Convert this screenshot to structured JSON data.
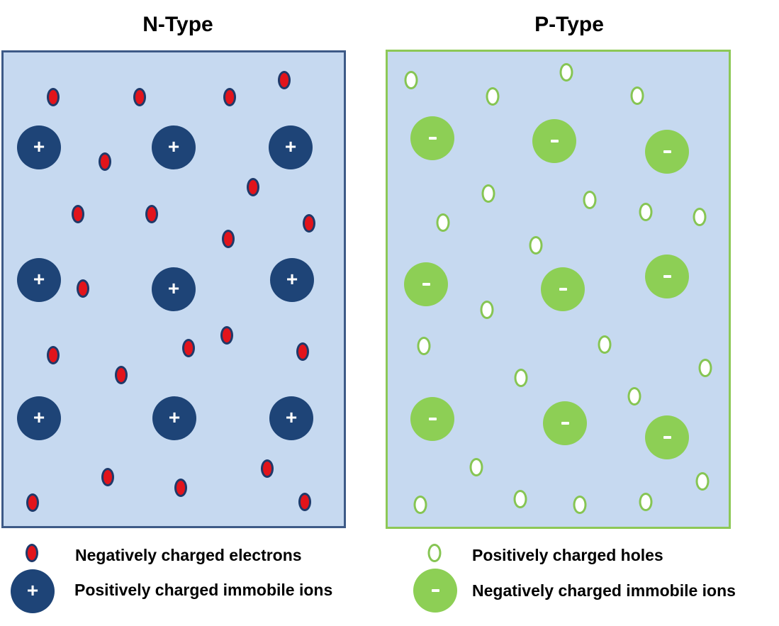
{
  "n_type": {
    "title": "N-Type",
    "ion_sign": "+",
    "immobile_ions": [
      [
        55,
        208
      ],
      [
        245,
        208
      ],
      [
        410,
        208
      ],
      [
        55,
        395
      ],
      [
        245,
        408
      ],
      [
        412,
        395
      ],
      [
        55,
        590
      ],
      [
        246,
        590
      ],
      [
        411,
        590
      ]
    ],
    "electrons": [
      [
        75,
        137
      ],
      [
        197,
        137
      ],
      [
        324,
        137
      ],
      [
        401,
        113
      ],
      [
        148,
        228
      ],
      [
        357,
        264
      ],
      [
        110,
        302
      ],
      [
        214,
        302
      ],
      [
        322,
        337
      ],
      [
        436,
        315
      ],
      [
        117,
        407
      ],
      [
        75,
        501
      ],
      [
        266,
        491
      ],
      [
        320,
        473
      ],
      [
        427,
        496
      ],
      [
        171,
        529
      ],
      [
        152,
        673
      ],
      [
        255,
        688
      ],
      [
        377,
        661
      ],
      [
        46,
        709
      ],
      [
        430,
        708
      ]
    ]
  },
  "p_type": {
    "title": "P-Type",
    "ion_sign": "-",
    "immobile_ions": [
      [
        610,
        195
      ],
      [
        782,
        199
      ],
      [
        941,
        214
      ],
      [
        601,
        401
      ],
      [
        794,
        408
      ],
      [
        941,
        390
      ],
      [
        610,
        591
      ],
      [
        797,
        597
      ],
      [
        941,
        617
      ]
    ],
    "holes": [
      [
        580,
        113
      ],
      [
        799,
        102
      ],
      [
        695,
        136
      ],
      [
        899,
        135
      ],
      [
        689,
        273
      ],
      [
        832,
        282
      ],
      [
        911,
        299
      ],
      [
        625,
        314
      ],
      [
        987,
        306
      ],
      [
        756,
        346
      ],
      [
        687,
        437
      ],
      [
        598,
        488
      ],
      [
        853,
        486
      ],
      [
        735,
        533
      ],
      [
        995,
        519
      ],
      [
        895,
        559
      ],
      [
        672,
        659
      ],
      [
        991,
        679
      ],
      [
        593,
        712
      ],
      [
        734,
        704
      ],
      [
        818,
        712
      ],
      [
        911,
        708
      ]
    ]
  },
  "legend": {
    "electrons": "Negatively charged electrons",
    "positive_ions": "Positively charged immobile ions",
    "holes": "Positively charged holes",
    "negative_ions": "Negatively charged immobile ions"
  },
  "colors": {
    "panel_fill": "#c6d9f0",
    "n_border": "#3d5a87",
    "p_border": "#8dc856",
    "positive_ion": "#1e4477",
    "negative_ion": "#8dcf55",
    "electron": "#e2141b",
    "hole_outline": "#86c553"
  }
}
